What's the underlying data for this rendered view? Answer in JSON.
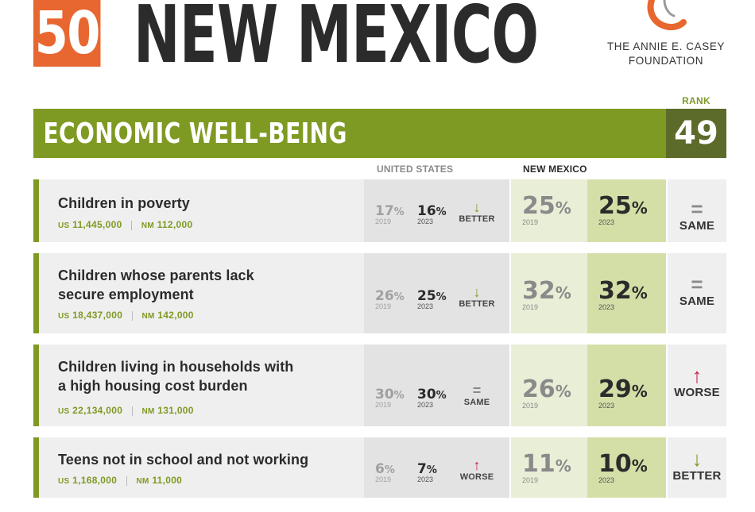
{
  "header": {
    "rank_number": "50",
    "state_name": "NEW MEXICO",
    "logo_line1": "THE ANNIE E. CASEY",
    "logo_line2": "FOUNDATION"
  },
  "section": {
    "title": "ECONOMIC WELL-BEING",
    "rank_label": "RANK",
    "rank": "49"
  },
  "columns": {
    "us": "UNITED STATES",
    "nm": "NEW MEXICO"
  },
  "colors": {
    "brand_orange": "#e8662f",
    "section_green": "#7f9a23",
    "rank_dark": "#5c6b2a",
    "better": "#7f9a23",
    "worse": "#c8234a"
  },
  "rows": [
    {
      "title_lines": [
        "Children in poverty"
      ],
      "us_label": "US",
      "us_count": "11,445,000",
      "nm_label": "NM",
      "nm_count": "112,000",
      "us_2019": "17",
      "us_2023": "16",
      "us_trend_symbol": "↓",
      "us_trend": "BETTER",
      "nm_2019": "25",
      "nm_2023": "25",
      "nm_trend_symbol": "=",
      "nm_trend": "SAME",
      "pct": "%",
      "year1": "2019",
      "year2": "2023"
    },
    {
      "title_lines": [
        "Children whose parents lack",
        "secure employment"
      ],
      "us_label": "US",
      "us_count": "18,437,000",
      "nm_label": "NM",
      "nm_count": "142,000",
      "us_2019": "26",
      "us_2023": "25",
      "us_trend_symbol": "↓",
      "us_trend": "BETTER",
      "nm_2019": "32",
      "nm_2023": "32",
      "nm_trend_symbol": "=",
      "nm_trend": "SAME",
      "pct": "%",
      "year1": "2019",
      "year2": "2023"
    },
    {
      "title_lines": [
        "Children living in households with",
        "a high housing cost burden"
      ],
      "us_label": "US",
      "us_count": "22,134,000",
      "nm_label": "NM",
      "nm_count": "131,000",
      "us_2019": "30",
      "us_2023": "30",
      "us_trend_symbol": "=",
      "us_trend": "SAME",
      "nm_2019": "26",
      "nm_2023": "29",
      "nm_trend_symbol": "↑",
      "nm_trend": "WORSE",
      "pct": "%",
      "year1": "2019",
      "year2": "2023"
    },
    {
      "title_lines": [
        "Teens not in school and not working"
      ],
      "us_label": "US",
      "us_count": "1,168,000",
      "nm_label": "NM",
      "nm_count": "11,000",
      "us_2019": "6",
      "us_2023": "7",
      "us_trend_symbol": "↑",
      "us_trend": "WORSE",
      "nm_2019": "11",
      "nm_2023": "10",
      "nm_trend_symbol": "↓",
      "nm_trend": "BETTER",
      "pct": "%",
      "year1": "2019",
      "year2": "2023"
    }
  ]
}
